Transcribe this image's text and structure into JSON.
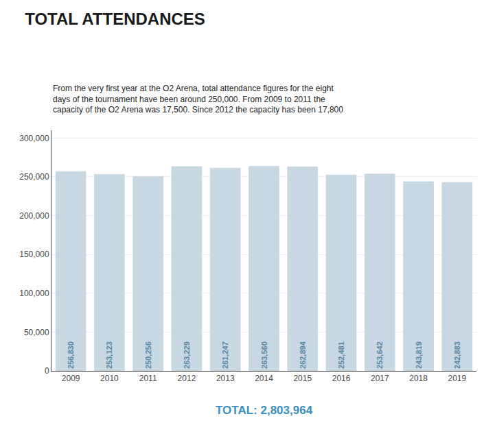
{
  "chart_data": {
    "type": "bar",
    "title": "TOTAL ATTENDANCES",
    "subtitle": "From the very first year at the O2 Arena, total attendance figures for the eight\ndays of the tournament have been around 250,000. From 2009 to 2011 the\ncapacity of the O2 Arena was 17,500. Since 2012 the capacity has been 17,800",
    "categories": [
      "2009",
      "2010",
      "2011",
      "2012",
      "2013",
      "2014",
      "2015",
      "2016",
      "2017",
      "2018",
      "2019"
    ],
    "values": [
      256830,
      253123,
      250256,
      263229,
      261247,
      263560,
      262894,
      252481,
      253642,
      243819,
      242883
    ],
    "value_labels": [
      "256,830",
      "253,123",
      "250,256",
      "263,229",
      "261,247",
      "263,560",
      "262,894",
      "252,481",
      "253,642",
      "243,819",
      "242,883"
    ],
    "data_labels": true,
    "annotations": [
      "TOTAL: 2,803,964"
    ],
    "color": "#c8d8e3",
    "ylim": [
      0,
      310000
    ],
    "yticks": [
      0,
      {
        "value": 50000,
        "label": "50,000"
      },
      {
        "value": 100000,
        "label": "100,000"
      },
      {
        "value": 150000,
        "label": "150,000"
      },
      {
        "value": 200000,
        "label": "200,000"
      },
      {
        "value": 250000,
        "label": "250,000"
      },
      {
        "value": 300000,
        "label": "300,000"
      }
    ],
    "grid": true
  }
}
